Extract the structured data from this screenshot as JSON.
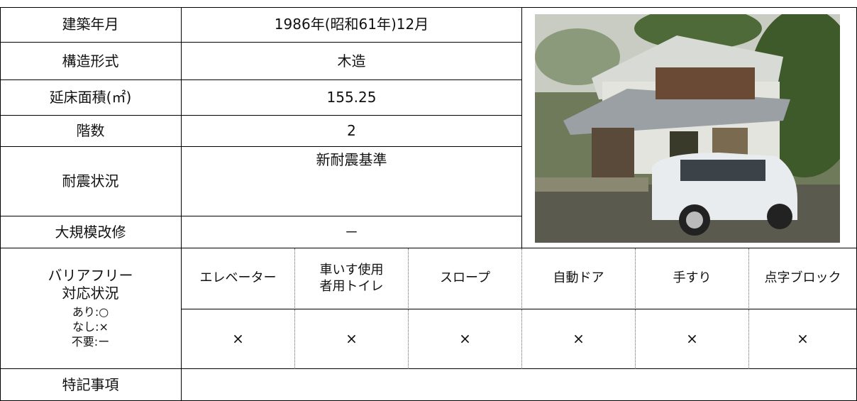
{
  "rows": [
    {
      "label": "建築年月",
      "value": "1986年(昭和61年)12月"
    },
    {
      "label": "構造形式",
      "value": "木造"
    },
    {
      "label": "延床面積(㎡)",
      "value": "155.25"
    },
    {
      "label": "階数",
      "value": "2"
    },
    {
      "label": "耐震状況",
      "value": "新耐震基準"
    },
    {
      "label": "大規模改修",
      "value": "－"
    }
  ],
  "barrier": {
    "label": [
      "バリアフリー",
      "対応状況"
    ],
    "legend": [
      "あり:○",
      "なし:×",
      "不要:ー"
    ],
    "items": [
      [
        "エレベーター"
      ],
      [
        "車いす使用",
        "者用トイレ"
      ],
      [
        "スロープ"
      ],
      [
        "自動ドア"
      ],
      [
        "手すり"
      ],
      [
        "点字ブロック"
      ]
    ],
    "values": [
      "×",
      "×",
      "×",
      "×",
      "×",
      "×"
    ]
  },
  "notes": {
    "label": "特記事項"
  }
}
